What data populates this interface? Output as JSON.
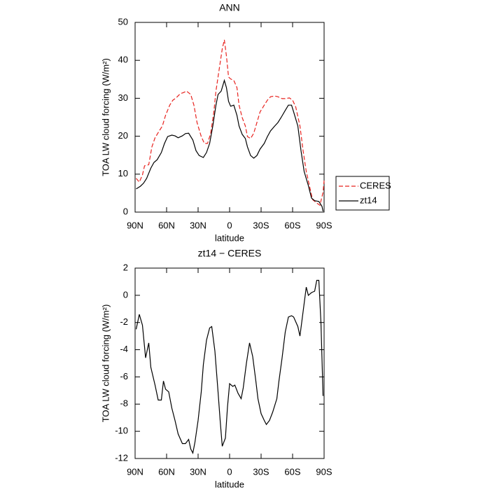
{
  "chart_data": [
    {
      "type": "line",
      "title": "ANN",
      "xlabel": "latitude",
      "ylabel": "TOA LW cloud forcing (W/m²)",
      "xlim": [
        90,
        -90
      ],
      "xticks": [
        {
          "value": 90,
          "label": "90N"
        },
        {
          "value": 60,
          "label": "60N"
        },
        {
          "value": 30,
          "label": "30N"
        },
        0,
        {
          "value": -30,
          "label": "30S"
        },
        {
          "value": -60,
          "label": "60S"
        },
        {
          "value": -90,
          "label": "90S"
        }
      ],
      "ylim": [
        0,
        50
      ],
      "yticks": [
        0,
        10,
        20,
        30,
        40,
        50
      ],
      "legend": "right",
      "series": [
        {
          "name": "CERES",
          "color": "#e8231f",
          "style": "dashed",
          "x": [
            89,
            86,
            83,
            81,
            77,
            74,
            71,
            67,
            64,
            61,
            57,
            54,
            51,
            47,
            44,
            41,
            37,
            34,
            31,
            27,
            24,
            21,
            18,
            15,
            13,
            10,
            7,
            5,
            3,
            1,
            -1,
            -4,
            -7,
            -9,
            -12,
            -15,
            -17,
            -20,
            -23,
            -26,
            -29,
            -33,
            -36,
            -39,
            -43,
            -46,
            -50,
            -53,
            -57,
            -60,
            -63,
            -67,
            -70,
            -73,
            -76,
            -79,
            -83,
            -86,
            -89,
            -90
          ],
          "values": [
            8.9,
            7.9,
            9.8,
            12.2,
            12.5,
            17.2,
            19.6,
            21.4,
            22.7,
            25.5,
            28.2,
            29.5,
            30.1,
            31.2,
            31.5,
            31.9,
            31,
            28.2,
            23.6,
            19.9,
            18.1,
            18.1,
            20.8,
            26.4,
            31.9,
            37.5,
            43,
            45.4,
            41.1,
            35.6,
            35.1,
            34.7,
            32.8,
            28.2,
            24.9,
            22.7,
            19.9,
            19.4,
            20.8,
            23.6,
            26.4,
            28.2,
            29.5,
            30.4,
            30.6,
            30.4,
            29.9,
            29.9,
            30.1,
            29.5,
            27.7,
            22.7,
            16.2,
            10.7,
            7,
            3.3,
            2.4,
            1.8,
            5.2,
            8.3
          ]
        },
        {
          "name": "zt14",
          "color": "#000000",
          "style": "solid",
          "x": [
            89,
            85,
            82,
            79,
            75,
            72,
            69,
            65,
            62,
            59,
            55,
            52,
            49,
            45,
            42,
            39,
            35,
            32,
            29,
            25,
            22,
            19,
            16,
            13,
            11,
            8,
            5,
            3,
            1,
            -1,
            -4,
            -7,
            -9,
            -12,
            -15,
            -17,
            -20,
            -23,
            -26,
            -29,
            -33,
            -36,
            -39,
            -43,
            -46,
            -49,
            -53,
            -56,
            -59,
            -61,
            -65,
            -68,
            -71,
            -75,
            -78,
            -81,
            -85,
            -88,
            -89
          ],
          "values": [
            6.1,
            6.8,
            7.6,
            8.9,
            11.6,
            13.1,
            13.8,
            15.7,
            18.1,
            19.9,
            20.3,
            20.1,
            19.6,
            20.1,
            20.7,
            20.8,
            19,
            16.2,
            14.9,
            14.4,
            15.7,
            18.1,
            22.7,
            28.2,
            31,
            31.9,
            34.7,
            32.8,
            29.2,
            27.9,
            28.2,
            25.5,
            22.7,
            20.5,
            19.4,
            17.2,
            14.9,
            14.2,
            14.9,
            16.6,
            18.1,
            19.9,
            21.4,
            22.7,
            23.6,
            24.9,
            26.8,
            28.2,
            28.2,
            26.4,
            22.7,
            16.2,
            10.7,
            7,
            3.7,
            3,
            2.8,
            1.5,
            0.2
          ]
        }
      ]
    },
    {
      "type": "line",
      "title": "zt14 − CERES",
      "xlabel": "latitude",
      "ylabel": "TOA LW cloud forcing (W/m²)",
      "xlim": [
        90,
        -90
      ],
      "xticks": [
        {
          "value": 90,
          "label": "90N"
        },
        {
          "value": 60,
          "label": "60N"
        },
        {
          "value": 30,
          "label": "30N"
        },
        0,
        {
          "value": -30,
          "label": "30S"
        },
        {
          "value": -60,
          "label": "60S"
        },
        {
          "value": -90,
          "label": "90S"
        }
      ],
      "ylim": [
        -12,
        2
      ],
      "yticks": [
        -12,
        -10,
        -8,
        -6,
        -4,
        -2,
        0,
        2
      ],
      "series": [
        {
          "color": "#000000",
          "style": "solid",
          "x": [
            89,
            86,
            83,
            80,
            77,
            75,
            71,
            68,
            65,
            63,
            61,
            58,
            55,
            52,
            49,
            45,
            42,
            39,
            37,
            35,
            33,
            30,
            27,
            25,
            22,
            19,
            17,
            14,
            11,
            9,
            7,
            4,
            2,
            0,
            -3,
            -5,
            -8,
            -11,
            -13,
            -16,
            -19,
            -22,
            -25,
            -27,
            -30,
            -33,
            -35,
            -38,
            -41,
            -45,
            -47,
            -50,
            -53,
            -56,
            -59,
            -61,
            -65,
            -67,
            -70,
            -73,
            -75,
            -78,
            -81,
            -83,
            -85,
            -87,
            -89
          ],
          "values": [
            -2.5,
            -1.4,
            -2.2,
            -4.6,
            -3.5,
            -5.3,
            -6.6,
            -7.7,
            -7.7,
            -6.3,
            -6.9,
            -7.1,
            -8.3,
            -9.2,
            -10.2,
            -10.9,
            -10.9,
            -10.6,
            -11.3,
            -11.6,
            -10.8,
            -9.2,
            -7.1,
            -5.1,
            -3.3,
            -2.4,
            -2.3,
            -4.1,
            -7.1,
            -9.2,
            -11.1,
            -10.5,
            -8.2,
            -6.5,
            -6.7,
            -6.6,
            -7.2,
            -7.6,
            -6.8,
            -5,
            -3.5,
            -4.5,
            -6.3,
            -7.6,
            -8.7,
            -9.2,
            -9.5,
            -9.2,
            -8.6,
            -7.6,
            -6.3,
            -4.6,
            -2.7,
            -1.6,
            -1.5,
            -1.6,
            -2.3,
            -3,
            -1.2,
            0.6,
            0,
            0.2,
            0.3,
            1.1,
            1.1,
            -2,
            -7.4
          ]
        }
      ]
    }
  ]
}
